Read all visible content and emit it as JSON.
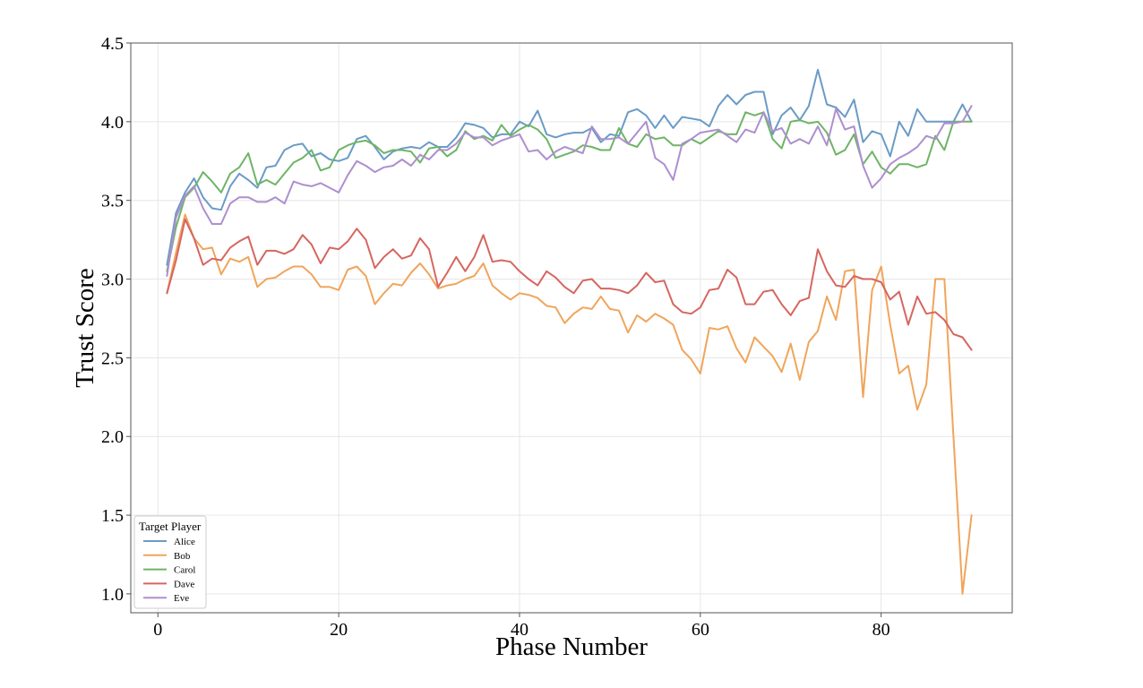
{
  "chart_data": {
    "type": "line",
    "title": "",
    "xlabel": "Phase Number",
    "ylabel": "Trust Score",
    "xlim": [
      -3,
      94.5
    ],
    "ylim": [
      0.88,
      4.5
    ],
    "xticks": [
      0,
      20,
      40,
      60,
      80
    ],
    "yticks": [
      1.0,
      1.5,
      2.0,
      2.5,
      3.0,
      3.5,
      4.0,
      4.5
    ],
    "grid": true,
    "legend": {
      "title": "Target Player",
      "position": "bottom-left"
    },
    "x": [
      1,
      2,
      3,
      4,
      5,
      6,
      7,
      8,
      9,
      10,
      11,
      12,
      13,
      14,
      15,
      16,
      17,
      18,
      19,
      20,
      21,
      22,
      23,
      24,
      25,
      26,
      27,
      28,
      29,
      30,
      31,
      32,
      33,
      34,
      35,
      36,
      37,
      38,
      39,
      40,
      41,
      42,
      43,
      44,
      45,
      46,
      47,
      48,
      49,
      50,
      51,
      52,
      53,
      54,
      55,
      56,
      57,
      58,
      59,
      60,
      61,
      62,
      63,
      64,
      65,
      66,
      67,
      68,
      69,
      70,
      71,
      72,
      73,
      74,
      75,
      76,
      77,
      78,
      79,
      80,
      81,
      82,
      83,
      84,
      85,
      86,
      87,
      88,
      89,
      90
    ],
    "series": [
      {
        "name": "Alice",
        "color": "#6a9bc6",
        "values": [
          3.09,
          3.42,
          3.55,
          3.64,
          3.52,
          3.45,
          3.44,
          3.59,
          3.67,
          3.63,
          3.58,
          3.71,
          3.72,
          3.82,
          3.85,
          3.86,
          3.78,
          3.8,
          3.76,
          3.75,
          3.77,
          3.89,
          3.91,
          3.84,
          3.76,
          3.81,
          3.83,
          3.84,
          3.83,
          3.87,
          3.84,
          3.84,
          3.9,
          3.99,
          3.98,
          3.96,
          3.9,
          3.92,
          3.92,
          4.0,
          3.97,
          4.07,
          3.92,
          3.9,
          3.92,
          3.93,
          3.93,
          3.96,
          3.87,
          3.92,
          3.91,
          4.06,
          4.08,
          4.04,
          3.96,
          4.04,
          3.96,
          4.03,
          4.02,
          4.01,
          3.97,
          4.1,
          4.17,
          4.11,
          4.17,
          4.19,
          4.19,
          3.92,
          4.04,
          4.09,
          4.01,
          4.1,
          4.33,
          4.11,
          4.09,
          4.03,
          4.14,
          3.87,
          3.94,
          3.92,
          3.78,
          4.0,
          3.91,
          4.08,
          4.0,
          4.0,
          4.0,
          4.0,
          4.11,
          4.0
        ]
      },
      {
        "name": "Bob",
        "color": "#f0a55c",
        "values": [
          2.91,
          3.17,
          3.41,
          3.26,
          3.19,
          3.2,
          3.03,
          3.13,
          3.11,
          3.14,
          2.95,
          3.0,
          3.01,
          3.05,
          3.08,
          3.08,
          3.03,
          2.95,
          2.95,
          2.93,
          3.06,
          3.08,
          3.02,
          2.84,
          2.91,
          2.97,
          2.96,
          3.04,
          3.1,
          3.03,
          2.94,
          2.96,
          2.97,
          3.0,
          3.02,
          3.1,
          2.96,
          2.91,
          2.87,
          2.91,
          2.9,
          2.88,
          2.83,
          2.82,
          2.72,
          2.78,
          2.82,
          2.81,
          2.89,
          2.81,
          2.8,
          2.66,
          2.77,
          2.73,
          2.78,
          2.75,
          2.71,
          2.55,
          2.49,
          2.4,
          2.69,
          2.68,
          2.7,
          2.56,
          2.47,
          2.63,
          2.57,
          2.51,
          2.41,
          2.59,
          2.36,
          2.6,
          2.67,
          2.89,
          2.74,
          3.05,
          3.06,
          2.25,
          2.93,
          3.08,
          2.71,
          2.4,
          2.45,
          2.17,
          2.33,
          3.0,
          3.0,
          2.0,
          1.0,
          1.5
        ]
      },
      {
        "name": "Carol",
        "color": "#6eb466",
        "values": [
          3.05,
          3.33,
          3.52,
          3.58,
          3.68,
          3.62,
          3.55,
          3.67,
          3.71,
          3.8,
          3.6,
          3.63,
          3.6,
          3.67,
          3.74,
          3.77,
          3.82,
          3.69,
          3.71,
          3.82,
          3.85,
          3.87,
          3.88,
          3.85,
          3.8,
          3.82,
          3.82,
          3.81,
          3.74,
          3.83,
          3.84,
          3.78,
          3.82,
          3.94,
          3.89,
          3.91,
          3.88,
          3.98,
          3.91,
          3.95,
          3.98,
          3.95,
          3.89,
          3.77,
          3.79,
          3.81,
          3.85,
          3.84,
          3.82,
          3.82,
          3.96,
          3.86,
          3.84,
          3.92,
          3.89,
          3.9,
          3.85,
          3.85,
          3.89,
          3.86,
          3.9,
          3.94,
          3.92,
          3.92,
          4.06,
          4.04,
          4.06,
          3.89,
          3.83,
          4.0,
          4.01,
          3.99,
          4.0,
          3.93,
          3.79,
          3.82,
          3.92,
          3.73,
          3.81,
          3.71,
          3.67,
          3.73,
          3.73,
          3.71,
          3.73,
          3.91,
          3.82,
          4.0,
          4.0,
          4.0
        ]
      },
      {
        "name": "Dave",
        "color": "#d6665f",
        "values": [
          2.91,
          3.12,
          3.38,
          3.26,
          3.09,
          3.13,
          3.12,
          3.2,
          3.24,
          3.27,
          3.09,
          3.18,
          3.18,
          3.16,
          3.19,
          3.28,
          3.22,
          3.1,
          3.2,
          3.19,
          3.24,
          3.32,
          3.25,
          3.07,
          3.14,
          3.19,
          3.13,
          3.15,
          3.26,
          3.19,
          2.95,
          3.04,
          3.14,
          3.05,
          3.14,
          3.28,
          3.11,
          3.12,
          3.11,
          3.05,
          3.0,
          2.96,
          3.05,
          3.01,
          2.95,
          2.91,
          2.99,
          3.0,
          2.94,
          2.94,
          2.93,
          2.91,
          2.96,
          3.04,
          2.98,
          2.99,
          2.84,
          2.79,
          2.78,
          2.82,
          2.93,
          2.94,
          3.06,
          3.01,
          2.84,
          2.84,
          2.92,
          2.93,
          2.84,
          2.77,
          2.86,
          2.88,
          3.19,
          3.05,
          2.96,
          2.95,
          3.02,
          3.0,
          3.0,
          2.98,
          2.87,
          2.92,
          2.71,
          2.89,
          2.78,
          2.79,
          2.74,
          2.65,
          2.63,
          2.55
        ]
      },
      {
        "name": "Eve",
        "color": "#ad8fce",
        "values": [
          3.02,
          3.39,
          3.53,
          3.59,
          3.45,
          3.35,
          3.35,
          3.48,
          3.52,
          3.52,
          3.49,
          3.49,
          3.52,
          3.48,
          3.62,
          3.6,
          3.59,
          3.61,
          3.58,
          3.55,
          3.66,
          3.75,
          3.72,
          3.68,
          3.71,
          3.72,
          3.76,
          3.72,
          3.79,
          3.76,
          3.82,
          3.82,
          3.86,
          3.93,
          3.9,
          3.9,
          3.85,
          3.88,
          3.9,
          3.92,
          3.81,
          3.82,
          3.76,
          3.81,
          3.84,
          3.82,
          3.8,
          3.97,
          3.89,
          3.89,
          3.9,
          3.86,
          3.93,
          4.0,
          3.77,
          3.73,
          3.63,
          3.86,
          3.89,
          3.93,
          3.94,
          3.95,
          3.91,
          3.87,
          3.95,
          3.93,
          4.06,
          3.94,
          3.96,
          3.86,
          3.89,
          3.86,
          3.97,
          3.85,
          4.08,
          3.95,
          3.97,
          3.72,
          3.58,
          3.64,
          3.73,
          3.77,
          3.8,
          3.84,
          3.91,
          3.89,
          3.99,
          3.99,
          4.0,
          4.1
        ]
      }
    ]
  }
}
